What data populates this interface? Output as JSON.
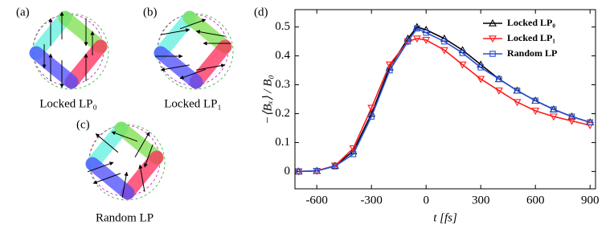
{
  "panels": [
    {
      "tag": "(a)",
      "caption": "Locked LP₀"
    },
    {
      "tag": "(b)",
      "caption": "Locked LP₁"
    },
    {
      "tag": "(c)",
      "caption": "Random LP"
    }
  ],
  "chart_data": {
    "type": "line",
    "panel_tag": "(d)",
    "x_label": "t [fs]",
    "y_label": "−⟨Bₓ⟩ / B₀",
    "x": [
      -700,
      -600,
      -500,
      -400,
      -300,
      -200,
      -100,
      -50,
      0,
      100,
      200,
      300,
      400,
      500,
      600,
      700,
      800,
      900
    ],
    "series": [
      {
        "name": "Locked LP₀",
        "color": "#000000",
        "marker": "triangle-up",
        "values": [
          0,
          0.002,
          0.02,
          0.07,
          0.2,
          0.36,
          0.46,
          0.5,
          0.49,
          0.46,
          0.42,
          0.37,
          0.32,
          0.28,
          0.245,
          0.215,
          0.19,
          0.17
        ]
      },
      {
        "name": "Locked LP₁",
        "color": "#ff1a1a",
        "marker": "triangle-down",
        "values": [
          0,
          0.002,
          0.02,
          0.08,
          0.22,
          0.37,
          0.45,
          0.46,
          0.455,
          0.42,
          0.37,
          0.32,
          0.28,
          0.24,
          0.21,
          0.19,
          0.175,
          0.16
        ]
      },
      {
        "name": "Random LP",
        "color": "#2a4fd6",
        "marker": "square",
        "values": [
          0,
          0.002,
          0.018,
          0.06,
          0.19,
          0.35,
          0.45,
          0.495,
          0.48,
          0.45,
          0.41,
          0.36,
          0.32,
          0.28,
          0.245,
          0.215,
          0.19,
          0.17
        ]
      }
    ],
    "xlim": [
      -720,
      930
    ],
    "ylim": [
      -0.06,
      0.56
    ],
    "xticks": [
      -600,
      -300,
      0,
      300,
      600,
      900
    ],
    "yticks": [
      0,
      0.1,
      0.2,
      0.3,
      0.4,
      0.5
    ],
    "legend": "upper right"
  }
}
